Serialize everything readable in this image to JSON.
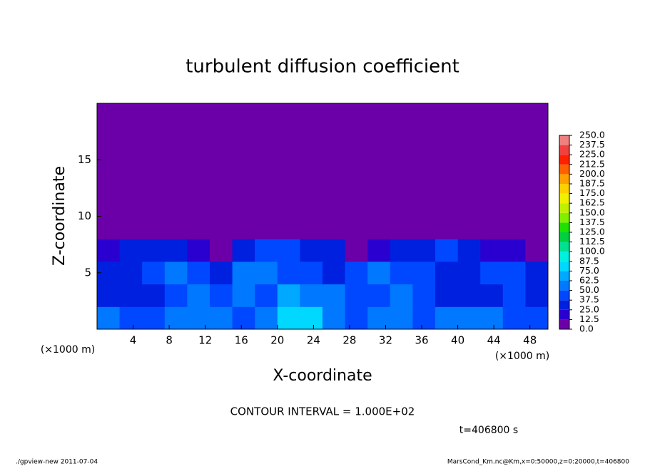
{
  "chart_data": {
    "type": "heatmap",
    "title": "turbulent diffusion coefficient",
    "x_label": "X-coordinate",
    "y_label": "Z-coordinate",
    "x_unit": "(×1000 m)",
    "y_unit": "(×1000 m)",
    "annotation": "CONTOUR INTERVAL = 1.000E+02",
    "time_label": "t=406800 s",
    "footer_left": "./gpview-new  2011-07-04",
    "footer_right": "MarsCond_Km.nc@Km,x=0:50000,z=0:20000,t=406800",
    "xlim": [
      0,
      50
    ],
    "ylim": [
      0,
      20
    ],
    "xticks": [
      4,
      8,
      12,
      16,
      20,
      24,
      28,
      32,
      36,
      40,
      44,
      48
    ],
    "yticks": [
      5,
      10,
      15
    ],
    "x": [
      1.25,
      3.75,
      6.25,
      8.75,
      11.25,
      13.75,
      16.25,
      18.75,
      21.25,
      23.75,
      26.25,
      28.75,
      31.25,
      33.75,
      36.25,
      38.75,
      41.25,
      43.75,
      46.25,
      48.75
    ],
    "y": [
      1,
      3,
      5,
      7,
      9,
      11,
      13,
      15,
      17,
      19
    ],
    "values": [
      [
        50,
        40,
        45,
        60,
        55,
        50,
        40,
        55,
        75,
        80,
        55,
        45,
        50,
        60,
        45,
        55,
        60,
        50,
        45,
        40
      ],
      [
        35,
        25,
        25,
        40,
        55,
        45,
        60,
        45,
        65,
        60,
        50,
        40,
        45,
        50,
        40,
        35,
        25,
        30,
        40,
        35
      ],
      [
        30,
        35,
        40,
        50,
        45,
        35,
        55,
        50,
        45,
        40,
        35,
        40,
        50,
        45,
        40,
        35,
        35,
        40,
        45,
        30
      ],
      [
        20,
        25,
        30,
        30,
        20,
        10,
        30,
        40,
        40,
        35,
        30,
        10,
        15,
        25,
        35,
        40,
        35,
        20,
        15,
        10
      ],
      [
        5,
        8,
        10,
        8,
        5,
        5,
        5,
        5,
        8,
        5,
        5,
        5,
        5,
        5,
        5,
        8,
        10,
        8,
        5,
        5
      ],
      [
        5,
        5,
        8,
        5,
        5,
        5,
        5,
        5,
        8,
        5,
        5,
        8,
        5,
        5,
        8,
        5,
        5,
        5,
        5,
        5
      ],
      [
        5,
        5,
        5,
        5,
        5,
        5,
        5,
        5,
        5,
        5,
        8,
        5,
        5,
        5,
        5,
        5,
        5,
        8,
        5,
        5
      ],
      [
        2,
        2,
        2,
        2,
        2,
        2,
        2,
        2,
        2,
        2,
        2,
        2,
        2,
        2,
        2,
        2,
        2,
        2,
        2,
        2
      ],
      [
        2,
        2,
        2,
        2,
        2,
        2,
        2,
        2,
        2,
        2,
        2,
        2,
        2,
        2,
        2,
        2,
        2,
        2,
        2,
        2
      ],
      [
        2,
        2,
        2,
        2,
        2,
        2,
        2,
        2,
        2,
        2,
        2,
        2,
        2,
        2,
        2,
        2,
        2,
        2,
        2,
        2
      ]
    ],
    "levels": [
      {
        "value": 0,
        "label": "0.0"
      },
      12.5,
      {
        "value": 25,
        "label": "25.0"
      },
      37.5,
      {
        "value": 50,
        "label": "50.0"
      },
      62.5,
      {
        "value": 75,
        "label": "75.0"
      },
      87.5,
      {
        "value": 100,
        "label": "100.0"
      },
      112.5,
      {
        "value": 125,
        "label": "125.0"
      },
      137.5,
      {
        "value": 150,
        "label": "150.0"
      },
      162.5,
      {
        "value": 175,
        "label": "175.0"
      },
      187.5,
      {
        "value": 200,
        "label": "200.0"
      },
      212.5,
      {
        "value": 225,
        "label": "225.0"
      },
      237.5,
      {
        "value": 250,
        "label": "250.0"
      }
    ],
    "colors": [
      "#6c00a8",
      "#2a00d0",
      "#0020e0",
      "#0048ff",
      "#0078ff",
      "#00a8ff",
      "#00d8ff",
      "#00f0e0",
      "#00e090",
      "#00d040",
      "#20e000",
      "#80f000",
      "#c0f000",
      "#f0f000",
      "#ffd000",
      "#ffa000",
      "#ff6000",
      "#ff2000",
      "#f04040",
      "#f08080"
    ],
    "grid": false
  }
}
